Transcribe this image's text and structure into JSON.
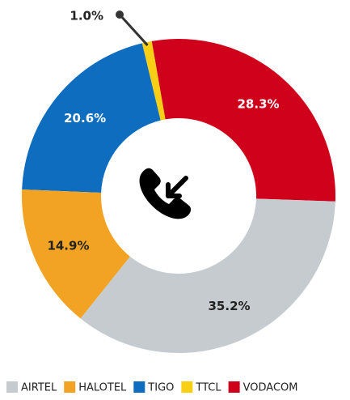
{
  "chart_data": {
    "type": "donut",
    "categories": [
      "AIRTEL",
      "HALOTEL",
      "TIGO",
      "TTCL",
      "VODACOM"
    ],
    "values": [
      35.2,
      14.9,
      20.6,
      1.0,
      28.3
    ],
    "value_labels": [
      "35.2%",
      "14.9%",
      "20.6%",
      "1.0%",
      "28.3%"
    ],
    "colors": [
      "#c5cbce",
      "#f2a323",
      "#0f6dbf",
      "#f9cf16",
      "#d0021b"
    ],
    "legend": "bottom"
  }
}
